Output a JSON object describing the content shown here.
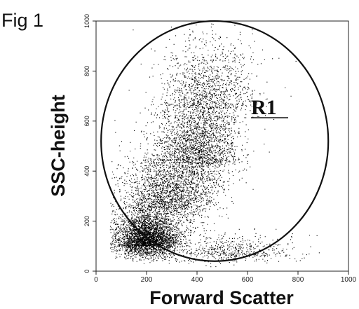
{
  "figure": {
    "label": "Fig 1"
  },
  "chart_data": {
    "type": "scatter",
    "title": "",
    "xlabel": "Forward Scatter",
    "ylabel": "SSC-height",
    "xlim": [
      0,
      1000
    ],
    "ylim": [
      0,
      1000
    ],
    "x_ticks": [
      "0",
      "200",
      "400",
      "600",
      "800",
      "1000"
    ],
    "y_ticks": [
      "0",
      "200",
      "400",
      "600",
      "800",
      "1000"
    ],
    "grid": false,
    "point_color": "#000000",
    "gate": {
      "name": "R1",
      "shape": "ellipse",
      "center": [
        470,
        520
      ],
      "x_radius": 450,
      "y_radius": 480
    },
    "density_clusters": [
      {
        "x_center": 200,
        "y_center": 100,
        "x_spread": 60,
        "y_spread": 60,
        "weight": 0.4
      },
      {
        "x_center": 280,
        "y_center": 250,
        "x_spread": 90,
        "y_spread": 110,
        "weight": 0.25
      },
      {
        "x_center": 400,
        "y_center": 430,
        "x_spread": 80,
        "y_spread": 140,
        "weight": 0.2
      },
      {
        "x_center": 450,
        "y_center": 650,
        "x_spread": 90,
        "y_spread": 150,
        "weight": 0.1
      },
      {
        "x_center": 520,
        "y_center": 60,
        "x_spread": 130,
        "y_spread": 40,
        "weight": 0.05
      }
    ]
  }
}
